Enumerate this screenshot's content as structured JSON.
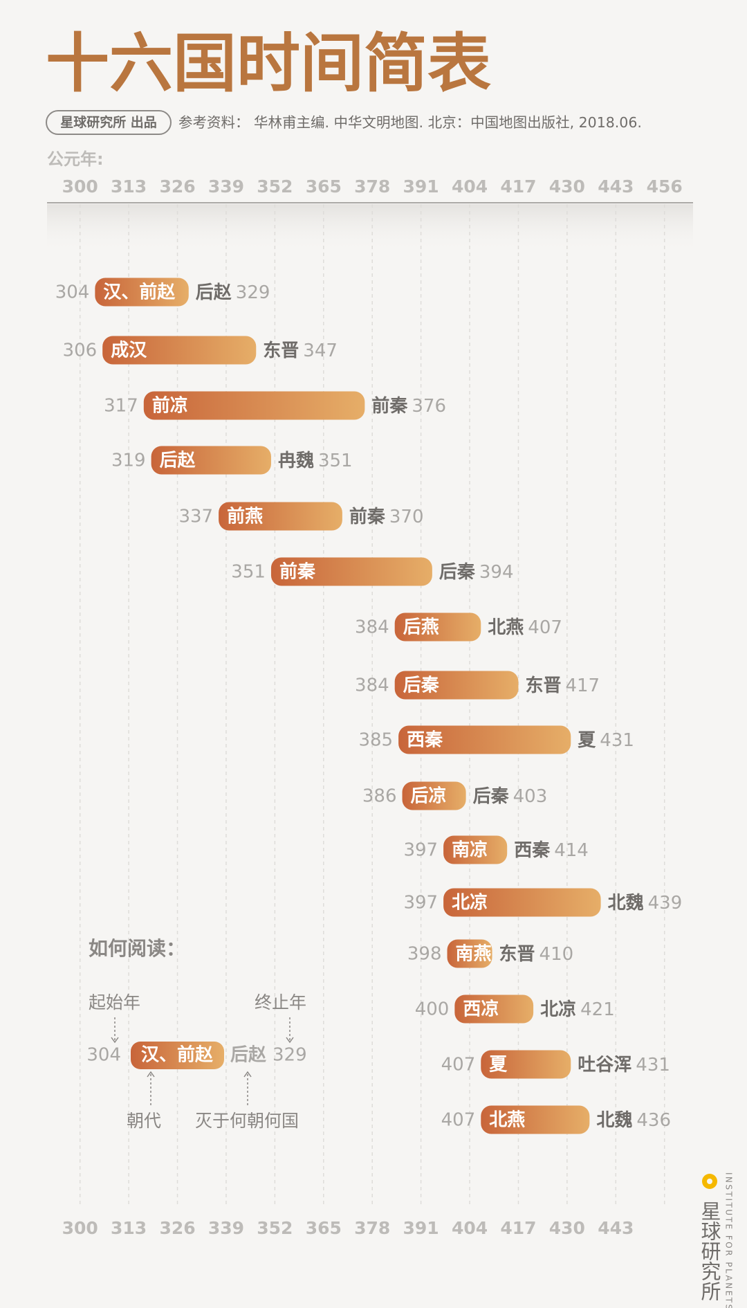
{
  "chart_data": {
    "type": "range-bar",
    "title": "十六国时间简表",
    "credit": "星球研究所 出品",
    "source": "参考资料： 华林甫主编. 中华文明地图. 北京：中国地图出版社, 2018.06.",
    "xlabel": "公元年:",
    "xlim": [
      300,
      456
    ],
    "xticks": [
      300,
      313,
      326,
      339,
      352,
      365,
      378,
      391,
      404,
      417,
      430,
      443,
      456
    ],
    "xticks_bottom": [
      300,
      313,
      326,
      339,
      352,
      365,
      378,
      391,
      404,
      417,
      430,
      443
    ],
    "grid": true,
    "gradient": [
      "#c8653a",
      "#e6ae68"
    ],
    "rows": [
      {
        "name": "汉、前赵",
        "start": 304,
        "end": 329,
        "successor": "后赵"
      },
      {
        "name": "成汉",
        "start": 306,
        "end": 347,
        "successor": "东晋"
      },
      {
        "name": "前凉",
        "start": 317,
        "end": 376,
        "successor": "前秦"
      },
      {
        "name": "后赵",
        "start": 319,
        "end": 351,
        "successor": "冉魏"
      },
      {
        "name": "前燕",
        "start": 337,
        "end": 370,
        "successor": "前秦"
      },
      {
        "name": "前秦",
        "start": 351,
        "end": 394,
        "successor": "后秦"
      },
      {
        "name": "后燕",
        "start": 384,
        "end": 407,
        "successor": "北燕"
      },
      {
        "name": "后秦",
        "start": 384,
        "end": 417,
        "successor": "东晋"
      },
      {
        "name": "西秦",
        "start": 385,
        "end": 431,
        "successor": "夏"
      },
      {
        "name": "后凉",
        "start": 386,
        "end": 403,
        "successor": "后秦"
      },
      {
        "name": "南凉",
        "start": 397,
        "end": 414,
        "successor": "西秦"
      },
      {
        "name": "北凉",
        "start": 397,
        "end": 439,
        "successor": "北魏"
      },
      {
        "name": "南燕",
        "start": 398,
        "end": 410,
        "successor": "东晋"
      },
      {
        "name": "西凉",
        "start": 400,
        "end": 421,
        "successor": "北凉"
      },
      {
        "name": "夏",
        "start": 407,
        "end": 431,
        "successor": "吐谷浑"
      },
      {
        "name": "北燕",
        "start": 407,
        "end": 436,
        "successor": "北魏"
      }
    ],
    "how_to_read": {
      "title": "如何阅读：",
      "start_label": "起始年",
      "end_label": "终止年",
      "name_label": "朝代",
      "successor_label": "灭于何朝何国",
      "example": {
        "start": "304",
        "name": "汉、前赵",
        "successor": "后赵",
        "end": "329"
      }
    },
    "brand": {
      "name": "星球研究所",
      "english": "INSTITUTE FOR PLANETS"
    }
  }
}
